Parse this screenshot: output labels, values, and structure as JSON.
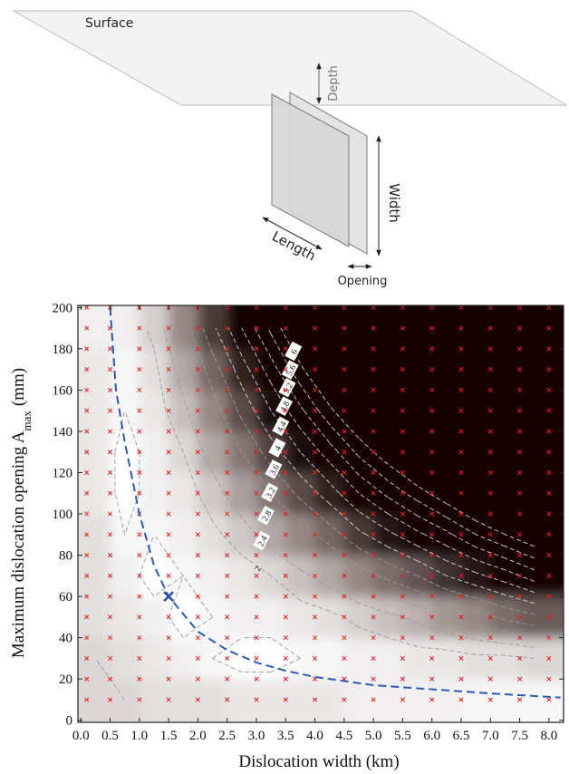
{
  "diagram": {
    "surface": "Surface",
    "depth": "Depth",
    "width": "Width",
    "length": "Length",
    "opening": "Opening"
  },
  "chart_data": {
    "type": "contour",
    "xlabel": "Dislocation width (km)",
    "ylabel": {
      "text": "Maximum dislocation opening A",
      "sub": "max",
      "unit": "(mm)"
    },
    "xlim": [
      -0.05,
      8.25
    ],
    "ylim": [
      -1,
      201
    ],
    "xticks": [
      {
        "value": 0,
        "label": "0.0"
      },
      0.5,
      {
        "value": 1,
        "label": "1.0"
      },
      1.5,
      {
        "value": 2,
        "label": "2.0"
      },
      2.5,
      {
        "value": 3,
        "label": "3.0"
      },
      3.5,
      {
        "value": 4,
        "label": "4.0"
      },
      4.5,
      {
        "value": 5,
        "label": "5.0"
      },
      5.5,
      {
        "value": 6,
        "label": "6.0"
      },
      6.5,
      {
        "value": 7,
        "label": "7.0"
      },
      7.5,
      {
        "value": 8,
        "label": "8.0"
      }
    ],
    "yticks": [
      0,
      20,
      40,
      60,
      80,
      100,
      120,
      140,
      160,
      180,
      200
    ],
    "misfit": {
      "x": [
        0.25,
        0.75,
        1.25,
        1.75,
        2.25,
        2.75,
        3.25,
        3.75,
        4.25,
        4.75,
        5.25,
        5.75,
        6.25,
        6.75,
        7.25,
        7.75
      ],
      "y": [
        10,
        30,
        50,
        70,
        90,
        110,
        130,
        150,
        170,
        190
      ],
      "values": [
        [
          2.0,
          2.0,
          1.9,
          1.9,
          1.9,
          1.8,
          1.8,
          1.8,
          1.8,
          1.7,
          1.7,
          1.7,
          1.7,
          1.6,
          1.6,
          1.6
        ],
        [
          2.0,
          1.9,
          1.8,
          1.7,
          1.6,
          1.5,
          1.5,
          1.6,
          1.6,
          1.7,
          1.7,
          1.8,
          1.8,
          1.9,
          1.9,
          2.0
        ],
        [
          1.9,
          1.8,
          1.7,
          1.5,
          1.6,
          1.7,
          1.7,
          1.8,
          1.9,
          2.1,
          2.3,
          2.5,
          2.8,
          3.0,
          3.3,
          3.5
        ],
        [
          1.9,
          1.7,
          1.5,
          1.6,
          1.7,
          1.8,
          2.0,
          2.3,
          2.6,
          3.0,
          3.3,
          3.6,
          4.0,
          4.3,
          4.6,
          5.0
        ],
        [
          1.9,
          1.6,
          1.6,
          1.7,
          1.9,
          2.2,
          2.6,
          3.0,
          3.4,
          3.9,
          4.3,
          4.7,
          5.1,
          5.6,
          6.0,
          6.4
        ],
        [
          1.8,
          1.5,
          1.7,
          1.8,
          2.2,
          2.7,
          3.2,
          3.7,
          4.2,
          4.8,
          5.3,
          5.8,
          6.3,
          6.8,
          7.4,
          7.9
        ],
        [
          1.8,
          1.5,
          1.7,
          2.0,
          2.6,
          3.2,
          3.8,
          4.4,
          5.0,
          5.7,
          6.3,
          6.9,
          7.5,
          8.1,
          8.7,
          9.3
        ],
        [
          1.8,
          1.6,
          1.8,
          2.3,
          3.0,
          3.7,
          4.4,
          5.1,
          5.9,
          6.6,
          7.3,
          8.0,
          8.7,
          9.4,
          10.1,
          10.8
        ],
        [
          1.8,
          1.6,
          1.9,
          2.6,
          3.4,
          4.2,
          5.0,
          5.9,
          6.7,
          7.5,
          8.3,
          9.1,
          9.9,
          10.7,
          11.5,
          12.3
        ],
        [
          1.7,
          1.7,
          2.1,
          3.0,
          3.9,
          4.8,
          5.7,
          6.6,
          7.5,
          8.4,
          9.2,
          10.1,
          11.0,
          11.9,
          12.8,
          13.7
        ]
      ]
    },
    "contours": {
      "levels": [
        1.6,
        2,
        2.4,
        2.8,
        3.2,
        3.6,
        4,
        4.4,
        4.8,
        5.2,
        5.6,
        6
      ]
    },
    "samples": {
      "x": [
        0.1,
        0.5,
        1,
        1.5,
        2,
        2.5,
        3,
        3.5,
        4,
        4.5,
        5,
        5.5,
        6,
        6.5,
        7,
        7.5,
        8
      ],
      "y": [
        10,
        20,
        30,
        40,
        50,
        60,
        70,
        80,
        90,
        100,
        110,
        120,
        130,
        140,
        150,
        160,
        170,
        180,
        190,
        200
      ],
      "color": "#e02020"
    },
    "best_fit": {
      "x": [
        0.5,
        0.6,
        0.75,
        1,
        1.25,
        1.5,
        2,
        2.5,
        3,
        3.5,
        4,
        5,
        6,
        7,
        8.2
      ],
      "values": [
        200,
        160,
        135,
        100,
        75,
        60,
        43,
        34,
        28,
        24,
        21,
        17,
        15,
        13,
        11
      ],
      "color": "#2d5bb0"
    },
    "best_point": {
      "x": 1.5,
      "y": 60,
      "color": "#2d4fa0"
    }
  }
}
